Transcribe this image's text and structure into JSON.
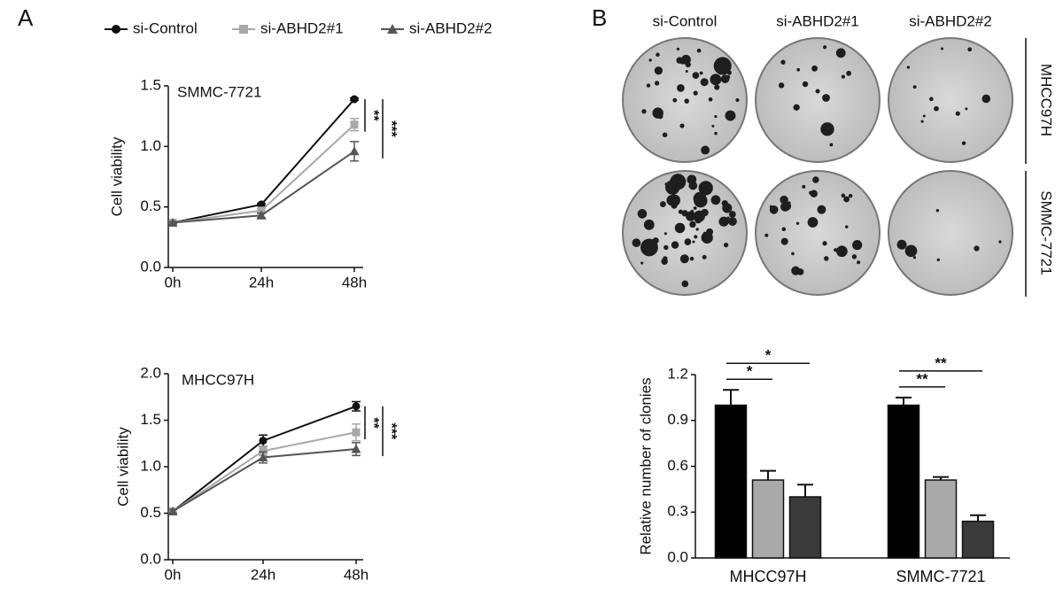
{
  "panel_labels": [
    "A",
    "B"
  ],
  "chart_data": [
    {
      "type": "line",
      "title": "SMMC-7721",
      "ylabel": "Cell viability",
      "categories": [
        "0h",
        "24h",
        "48h"
      ],
      "ylim": [
        0,
        1.5
      ],
      "yticks": [
        {
          "value": 0,
          "label": "0.0"
        },
        {
          "value": 0.5,
          "label": "0.5"
        },
        {
          "value": 1,
          "label": "1.0"
        },
        {
          "value": 1.5,
          "label": "1.5"
        }
      ],
      "series": [
        {
          "name": "si-Control",
          "color": "#111111",
          "marker": "circle",
          "values": [
            0.37,
            0.52,
            1.39
          ],
          "errors": [
            0.01,
            0.01,
            0.01
          ]
        },
        {
          "name": "si-ABHD2#1",
          "color": "#a8a8a8",
          "marker": "square",
          "values": [
            0.37,
            0.47,
            1.18
          ],
          "errors": [
            0.01,
            0.02,
            0.05
          ]
        },
        {
          "name": "si-ABHD2#2",
          "color": "#555555",
          "marker": "triangle",
          "values": [
            0.37,
            0.43,
            0.96
          ],
          "errors": [
            0.01,
            0.02,
            0.08
          ]
        }
      ],
      "annotations": [
        "**",
        "***"
      ]
    },
    {
      "type": "line",
      "title": "MHCC97H",
      "ylabel": "Cell viability",
      "categories": [
        "0h",
        "24h",
        "48h"
      ],
      "ylim": [
        0,
        2
      ],
      "yticks": [
        {
          "value": 0,
          "label": "0.0"
        },
        {
          "value": 0.5,
          "label": "0.5"
        },
        {
          "value": 1,
          "label": "1.0"
        },
        {
          "value": 1.5,
          "label": "1.5"
        },
        {
          "value": 2,
          "label": "2.0"
        }
      ],
      "series": [
        {
          "color": "#111111",
          "marker": "circle",
          "values": [
            0.52,
            1.28,
            1.65
          ],
          "errors": [
            0.02,
            0.06,
            0.05
          ]
        },
        {
          "color": "#a8a8a8",
          "marker": "square",
          "values": [
            0.52,
            1.17,
            1.37
          ],
          "errors": [
            0.02,
            0.05,
            0.09
          ]
        },
        {
          "color": "#555555",
          "marker": "triangle",
          "values": [
            0.52,
            1.1,
            1.19
          ],
          "errors": [
            0.02,
            0.06,
            0.07
          ]
        }
      ],
      "annotations": [
        "**",
        "***"
      ]
    },
    {
      "type": "bar",
      "ylabel": "Relative number of clonies",
      "categories": [
        "MHCC97H",
        "SMMC-7721"
      ],
      "ylim": [
        0,
        1.2
      ],
      "yticks": [
        {
          "value": 0,
          "label": "0.0"
        },
        {
          "value": 0.3,
          "label": "0.3"
        },
        {
          "value": 0.6,
          "label": "0.6"
        },
        {
          "value": 0.9,
          "label": "0.9"
        },
        {
          "value": 1.2,
          "label": "1.2"
        }
      ],
      "series": [
        {
          "color": "#000000",
          "values": [
            1.0,
            1.0
          ],
          "errors": [
            0.1,
            0.05
          ]
        },
        {
          "color": "#a9a9a9",
          "values": [
            0.51,
            0.51
          ],
          "errors": [
            0.06,
            0.02
          ]
        },
        {
          "color": "#3a3a3a",
          "values": [
            0.4,
            0.24
          ],
          "errors": [
            0.08,
            0.04
          ]
        }
      ],
      "annotations": [
        "*",
        "*",
        "**",
        "**"
      ]
    }
  ],
  "colony_images": {
    "columns": [
      "si-Control",
      "si-ABHD2#1",
      "si-ABHD2#2"
    ],
    "rows": [
      "MHCC97H",
      "SMMC-7721"
    ]
  }
}
